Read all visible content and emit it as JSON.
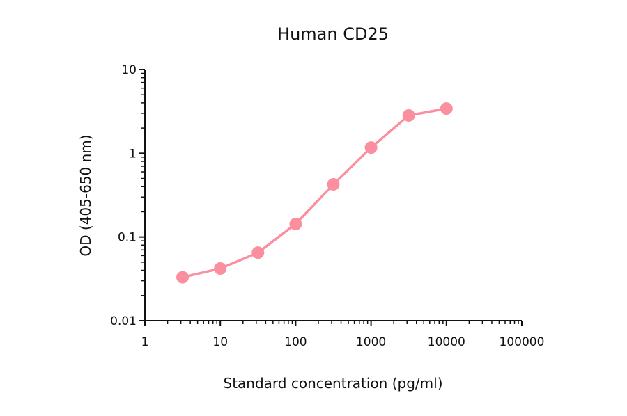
{
  "chart_data": {
    "type": "line",
    "title": "Human CD25",
    "xlabel": "Standard concentration (pg/ml)",
    "ylabel": "OD (405-650 nm)",
    "x_scale": "log",
    "y_scale": "log",
    "xlim": [
      1,
      100000
    ],
    "ylim": [
      0.01,
      10
    ],
    "x_ticks": [
      "1",
      "10",
      "100",
      "1000",
      "10000",
      "100000"
    ],
    "y_ticks": [
      "0.01",
      "0.1",
      "1",
      "10"
    ],
    "grid": false,
    "color": "#fb8fa0",
    "x": [
      3.16,
      10,
      31.6,
      100,
      316,
      1000,
      3162,
      10000
    ],
    "y": [
      0.033,
      0.042,
      0.065,
      0.143,
      0.425,
      1.17,
      2.83,
      3.42
    ]
  }
}
